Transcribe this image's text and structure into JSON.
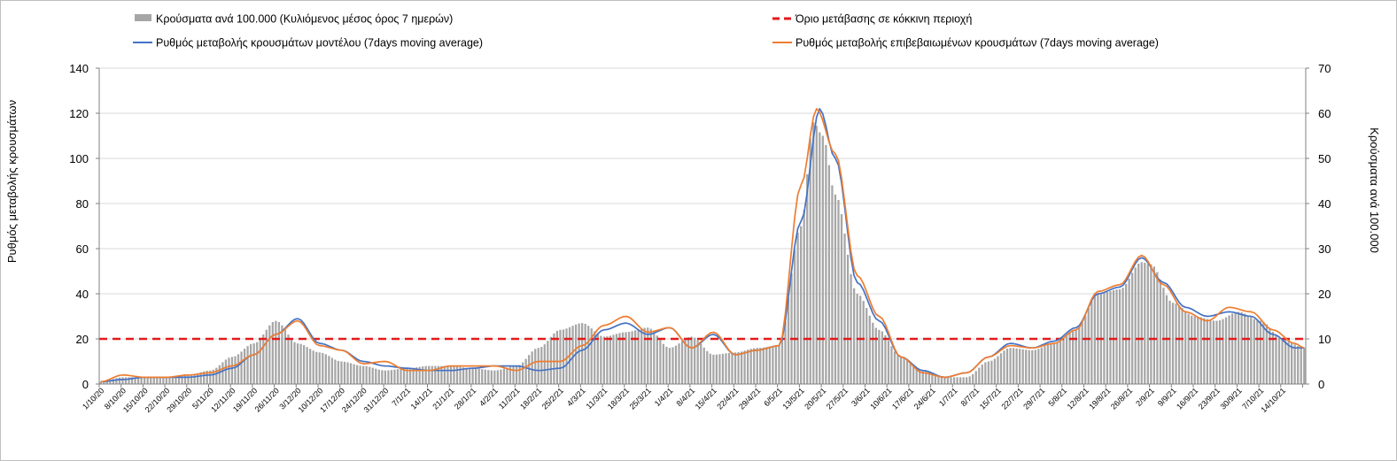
{
  "chart_data": {
    "type": "bar+line",
    "title": "",
    "ylabel_left": "Ρυθμός μεταβολής κρουσμάτων",
    "ylabel_right": "Κρούσματα ανά 100.000",
    "ylim_left": [
      0,
      140
    ],
    "ylim_right": [
      0,
      70
    ],
    "yticks_left": [
      0,
      20,
      40,
      60,
      80,
      100,
      120,
      140
    ],
    "yticks_right": [
      0,
      10,
      20,
      30,
      40,
      50,
      60,
      70
    ],
    "x_start": "1/10/2020",
    "num_days": 386,
    "xtick_labels": [
      "1/10/20",
      "8/10/20",
      "15/10/20",
      "22/10/20",
      "29/10/20",
      "5/11/20",
      "12/11/20",
      "19/11/20",
      "26/11/20",
      "3/12/20",
      "10/12/20",
      "17/12/20",
      "24/12/20",
      "31/12/20",
      "7/1/21",
      "14/1/21",
      "21/1/21",
      "28/1/21",
      "4/2/21",
      "11/2/21",
      "18/2/21",
      "25/2/21",
      "4/3/21",
      "11/3/21",
      "18/3/21",
      "25/3/21",
      "1/4/21",
      "8/4/21",
      "15/4/21",
      "22/4/21",
      "29/4/21",
      "6/5/21",
      "13/5/21",
      "20/5/21",
      "27/5/21",
      "3/6/21",
      "10/6/21",
      "17/6/21",
      "24/6/21",
      "1/7/21",
      "8/7/21",
      "15/7/21",
      "22/7/21",
      "29/7/21",
      "5/8/21",
      "12/8/21",
      "19/8/21",
      "26/8/21",
      "2/9/21",
      "9/9/21",
      "16/9/21",
      "23/9/21",
      "30/9/21",
      "7/10/21",
      "14/10/21"
    ],
    "threshold": {
      "value": 20,
      "axis": "left",
      "color": "#e31a1c",
      "style": "dashed"
    },
    "series": [
      {
        "name": "Κρούσματα ανά 100.000 (Κυλιόμενος μέσος όρος 7 ημερών)",
        "type": "bar",
        "axis": "right",
        "color": "#a6a6a6",
        "keyframes": [
          [
            0,
            0.5
          ],
          [
            7,
            1.5
          ],
          [
            14,
            1.5
          ],
          [
            21,
            1.5
          ],
          [
            28,
            2
          ],
          [
            35,
            3
          ],
          [
            42,
            6
          ],
          [
            49,
            9
          ],
          [
            56,
            14
          ],
          [
            63,
            9
          ],
          [
            70,
            7
          ],
          [
            77,
            5
          ],
          [
            84,
            4
          ],
          [
            91,
            3
          ],
          [
            98,
            3.5
          ],
          [
            105,
            4
          ],
          [
            112,
            4
          ],
          [
            119,
            3.5
          ],
          [
            126,
            3
          ],
          [
            133,
            4
          ],
          [
            140,
            8
          ],
          [
            147,
            12
          ],
          [
            154,
            13.5
          ],
          [
            161,
            10.5
          ],
          [
            168,
            11.5
          ],
          [
            175,
            12.5
          ],
          [
            182,
            8
          ],
          [
            189,
            10.5
          ],
          [
            196,
            6.5
          ],
          [
            203,
            7
          ],
          [
            210,
            8
          ],
          [
            217,
            8.5
          ],
          [
            224,
            35
          ],
          [
            228,
            58
          ],
          [
            231,
            55
          ],
          [
            235,
            42
          ],
          [
            242,
            20
          ],
          [
            249,
            12
          ],
          [
            256,
            6
          ],
          [
            263,
            3
          ],
          [
            270,
            1.5
          ],
          [
            277,
            1.5
          ],
          [
            284,
            5
          ],
          [
            291,
            8
          ],
          [
            298,
            7.5
          ],
          [
            305,
            9
          ],
          [
            312,
            12
          ],
          [
            319,
            20
          ],
          [
            326,
            21
          ],
          [
            333,
            27
          ],
          [
            336,
            26.5
          ],
          [
            343,
            18
          ],
          [
            350,
            15
          ],
          [
            357,
            14
          ],
          [
            364,
            16
          ],
          [
            371,
            14
          ],
          [
            378,
            10
          ],
          [
            385,
            8
          ]
        ]
      },
      {
        "name": "Ρυθμός μεταβολής κρουσμάτων μοντέλου (7days moving average)",
        "type": "line",
        "axis": "left",
        "color": "#4472c4",
        "keyframes": [
          [
            0,
            1
          ],
          [
            7,
            2
          ],
          [
            14,
            3
          ],
          [
            21,
            3
          ],
          [
            28,
            3
          ],
          [
            35,
            4
          ],
          [
            42,
            7
          ],
          [
            49,
            13
          ],
          [
            56,
            22
          ],
          [
            63,
            29
          ],
          [
            70,
            18
          ],
          [
            77,
            15
          ],
          [
            84,
            10
          ],
          [
            91,
            8
          ],
          [
            98,
            7
          ],
          [
            105,
            6
          ],
          [
            112,
            6
          ],
          [
            119,
            7
          ],
          [
            126,
            8
          ],
          [
            133,
            8
          ],
          [
            140,
            6
          ],
          [
            147,
            7
          ],
          [
            154,
            15
          ],
          [
            161,
            24
          ],
          [
            168,
            27
          ],
          [
            175,
            22
          ],
          [
            182,
            25
          ],
          [
            189,
            16
          ],
          [
            196,
            22
          ],
          [
            203,
            13
          ],
          [
            210,
            15
          ],
          [
            217,
            17
          ],
          [
            224,
            72
          ],
          [
            230,
            122
          ],
          [
            235,
            100
          ],
          [
            242,
            45
          ],
          [
            249,
            28
          ],
          [
            256,
            12
          ],
          [
            263,
            6
          ],
          [
            270,
            3
          ],
          [
            277,
            5
          ],
          [
            284,
            12
          ],
          [
            291,
            18
          ],
          [
            298,
            16
          ],
          [
            305,
            19
          ],
          [
            312,
            25
          ],
          [
            319,
            40
          ],
          [
            326,
            43
          ],
          [
            333,
            56
          ],
          [
            340,
            45
          ],
          [
            347,
            34
          ],
          [
            354,
            30
          ],
          [
            361,
            32
          ],
          [
            368,
            30
          ],
          [
            375,
            22
          ],
          [
            382,
            16
          ],
          [
            385,
            16
          ]
        ]
      },
      {
        "name": "Ρυθμός μεταβολής επιβεβαιωμένων κρουσμάτων (7days moving average)",
        "type": "line",
        "axis": "left",
        "color": "#ed7d31",
        "keyframes": [
          [
            0,
            1
          ],
          [
            7,
            4
          ],
          [
            14,
            3
          ],
          [
            21,
            3
          ],
          [
            28,
            4
          ],
          [
            35,
            5
          ],
          [
            42,
            8
          ],
          [
            49,
            13
          ],
          [
            56,
            22
          ],
          [
            63,
            28
          ],
          [
            70,
            17
          ],
          [
            77,
            15
          ],
          [
            84,
            9
          ],
          [
            91,
            10
          ],
          [
            98,
            6
          ],
          [
            105,
            6
          ],
          [
            112,
            8
          ],
          [
            119,
            8
          ],
          [
            126,
            8
          ],
          [
            133,
            6
          ],
          [
            140,
            10
          ],
          [
            147,
            10
          ],
          [
            154,
            17
          ],
          [
            161,
            26
          ],
          [
            168,
            30
          ],
          [
            175,
            23
          ],
          [
            182,
            25
          ],
          [
            189,
            16
          ],
          [
            196,
            23
          ],
          [
            203,
            13
          ],
          [
            210,
            15
          ],
          [
            217,
            17
          ],
          [
            224,
            88
          ],
          [
            229,
            122
          ],
          [
            235,
            102
          ],
          [
            242,
            48
          ],
          [
            249,
            30
          ],
          [
            256,
            12
          ],
          [
            263,
            5
          ],
          [
            270,
            3
          ],
          [
            277,
            5
          ],
          [
            284,
            12
          ],
          [
            291,
            17
          ],
          [
            298,
            16
          ],
          [
            305,
            18
          ],
          [
            312,
            24
          ],
          [
            319,
            41
          ],
          [
            326,
            44
          ],
          [
            333,
            57
          ],
          [
            340,
            44
          ],
          [
            347,
            32
          ],
          [
            354,
            28
          ],
          [
            361,
            34
          ],
          [
            368,
            32
          ],
          [
            375,
            24
          ],
          [
            382,
            18
          ],
          [
            385,
            16
          ]
        ]
      }
    ],
    "legend": [
      {
        "label": "Κρούσματα ανά 100.000 (Κυλιόμενος μέσος όρος 7 ημερών)",
        "marker": "bar",
        "color": "#a6a6a6"
      },
      {
        "label": "Όριο μετάβασης σε κόκκινη περιοχή",
        "marker": "dash",
        "color": "#e31a1c"
      },
      {
        "label": "Ρυθμός μεταβολής κρουσμάτων μοντέλου (7days moving average)",
        "marker": "line",
        "color": "#4472c4"
      },
      {
        "label": "Ρυθμός μεταβολής επιβεβαιωμένων κρουσμάτων (7days moving average)",
        "marker": "line",
        "color": "#ed7d31"
      }
    ]
  }
}
